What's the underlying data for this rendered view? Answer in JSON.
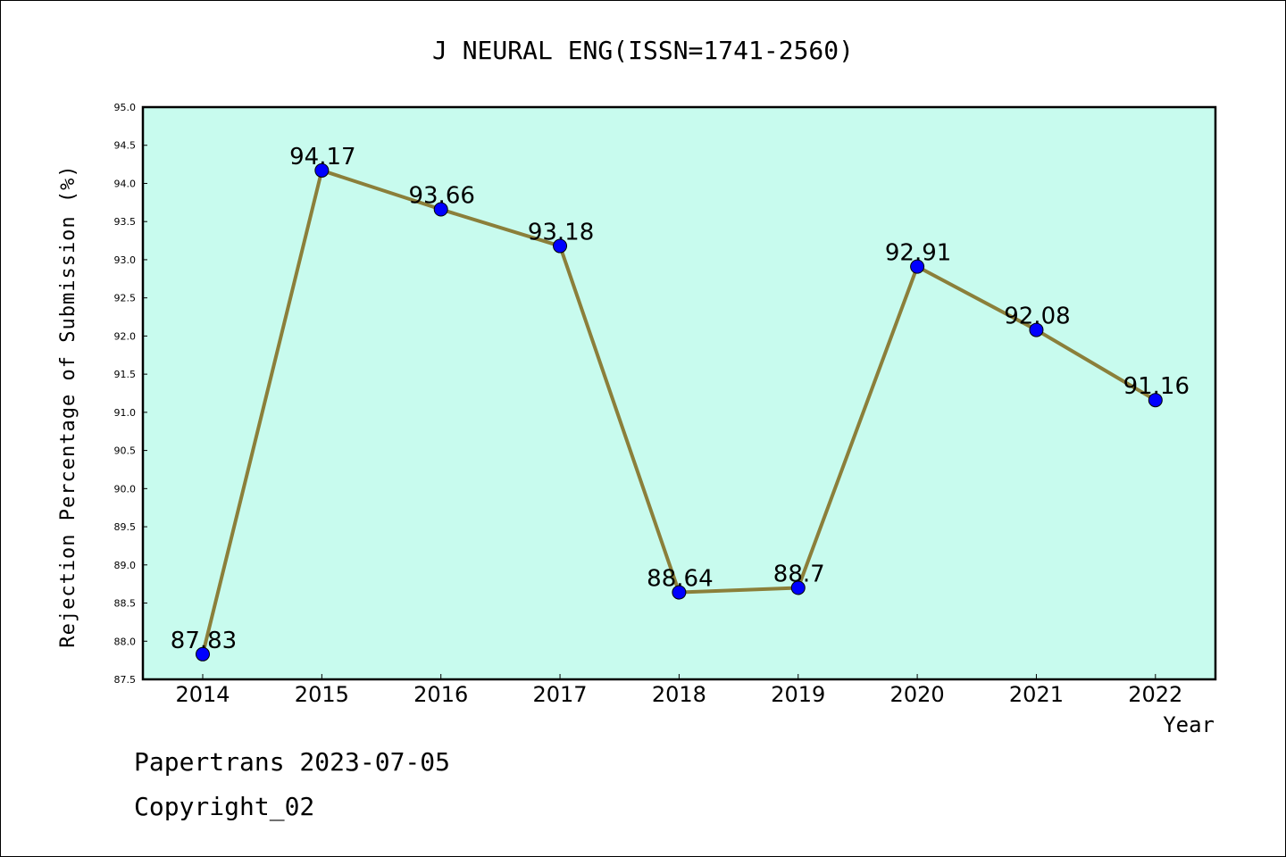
{
  "chart_data": {
    "type": "line",
    "title": "J NEURAL ENG(ISSN=1741-2560)",
    "xlabel": "Year",
    "ylabel": "Rejection Percentage of Submission (%)",
    "categories": [
      "2014",
      "2015",
      "2016",
      "2017",
      "2018",
      "2019",
      "2020",
      "2021",
      "2022"
    ],
    "values": [
      87.83,
      94.17,
      93.66,
      93.18,
      88.64,
      88.7,
      92.91,
      92.08,
      91.16
    ],
    "data_labels": [
      "87.83",
      "94.17",
      "93.66",
      "93.18",
      "88.64",
      "88.7",
      "92.91",
      "92.08",
      "91.16"
    ],
    "ylim": [
      87.5,
      95.0
    ],
    "yticks": [
      "87.5",
      "88.0",
      "88.5",
      "89.0",
      "89.5",
      "90.0",
      "90.5",
      "91.0",
      "91.5",
      "92.0",
      "92.5",
      "93.0",
      "93.5",
      "94.0",
      "94.5",
      "95.0"
    ],
    "grid": false,
    "colors": {
      "plot_background": "#c8fbee",
      "line": "#8b7f3a",
      "marker": "#0000ff"
    }
  },
  "footer": {
    "line1": "Papertrans 2023-07-05",
    "line2": "Copyright_02"
  }
}
